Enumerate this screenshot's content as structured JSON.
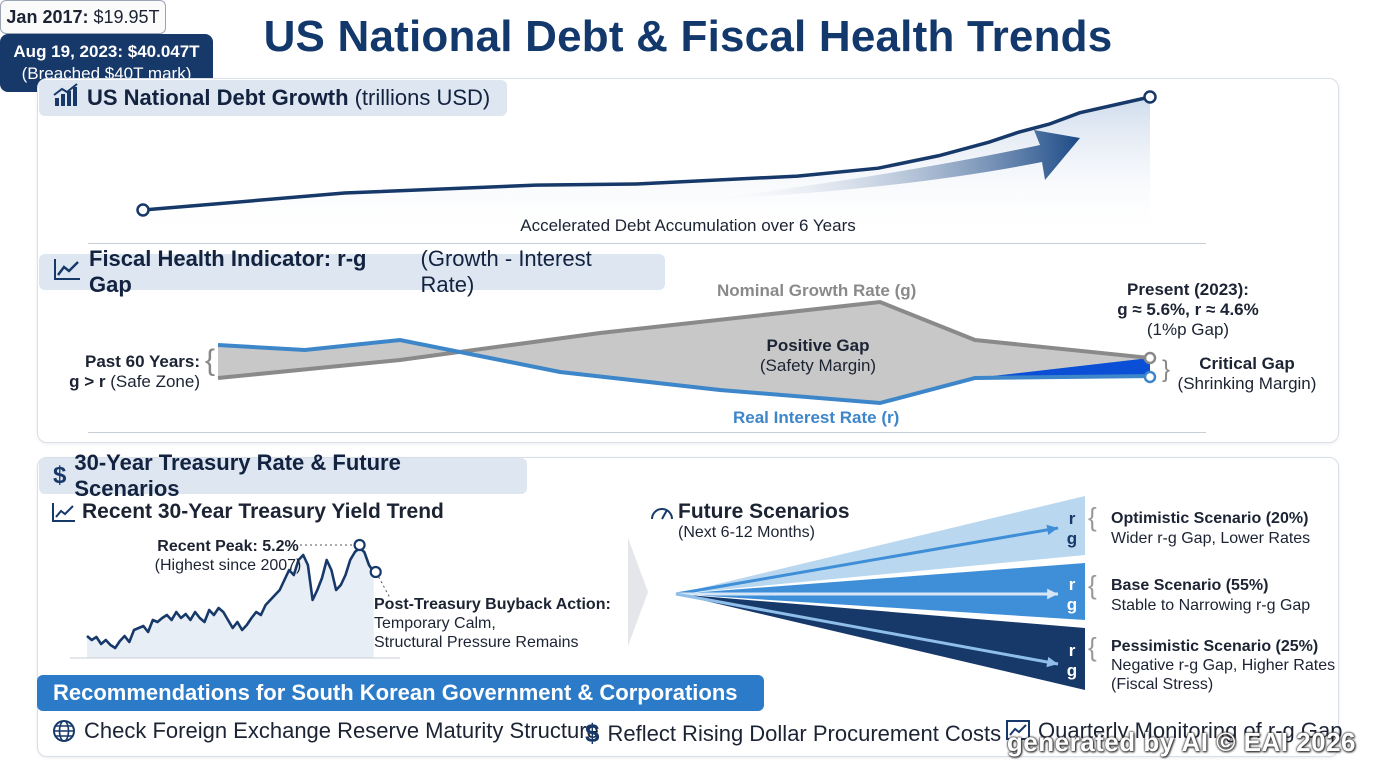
{
  "title": "US National Debt & Fiscal Health Trends",
  "sections": {
    "debt_growth": {
      "title_bold": "US National Debt Growth",
      "title_plain": "(trillions USD)"
    },
    "rg_gap": {
      "title_bold": "Fiscal Health Indicator: r-g Gap",
      "title_plain": "(Growth - Interest Rate)"
    },
    "treasury": {
      "title_bold": "30-Year Treasury Rate & Future Scenarios"
    }
  },
  "debt": {
    "start_label_bold": "Jan 2017:",
    "start_label_value": "$19.95T",
    "end_label_line1": "Aug 19, 2023: $40.047T",
    "end_label_line2": "(Breached $40T mark)",
    "caption": "Accelerated Debt Accumulation over 6 Years"
  },
  "rg": {
    "left_line1": "Past 60 Years:",
    "left_line2_bold": "g > r",
    "left_line2_plain": "(Safe Zone)",
    "g_label": "Nominal Growth Rate (g)",
    "r_label": "Real Interest Rate (r)",
    "positive_gap_bold": "Positive Gap",
    "positive_gap_plain": "(Safety Margin)",
    "present_line1": "Present (2023):",
    "present_line2": "g ≈ 5.6%, r ≈ 4.6%",
    "present_line3": "(1%p Gap)",
    "critical_bold": "Critical Gap",
    "critical_plain": "(Shrinking Margin)",
    "colors": {
      "g": "#8a8a8a",
      "r": "#3d86c9",
      "gap": "#c8c8c8",
      "critical": "#0a4fd6"
    }
  },
  "yield": {
    "title": "Recent 30-Year Treasury Yield Trend",
    "peak_bold": "Recent Peak: 5.2%",
    "peak_plain": "(Highest since 2007)",
    "post_bold": "Post-Treasury Buyback Action:",
    "post_line2": "Temporary Calm,",
    "post_line3": "Structural Pressure Remains"
  },
  "scenarios": {
    "title": "Future Scenarios",
    "subtitle": "(Next 6-12 Months)",
    "items": [
      {
        "name": "Optimistic Scenario (20%)",
        "desc": "Wider r-g Gap, Lower Rates",
        "desc2": "",
        "r": "r",
        "g": "g",
        "color": "#b9d7ef"
      },
      {
        "name": "Base Scenario (55%)",
        "desc": "Stable to Narrowing r-g Gap",
        "desc2": "",
        "r": "r",
        "g": "g",
        "color": "#3f8fd8"
      },
      {
        "name": "Pessimistic Scenario (25%)",
        "desc": "Negative r-g Gap, Higher Rates",
        "desc2": "(Fiscal Stress)",
        "r": "r",
        "g": "g",
        "color": "#17396a"
      }
    ]
  },
  "recommendations": {
    "title": "Recommendations for South Korean Government & Corporations",
    "items": [
      "Check Foreign Exchange Reserve Maturity Structure",
      "Reflect Rising Dollar Procurement Costs",
      "Quarterly Monitoring of r-g Gap"
    ]
  },
  "watermark": "generated by AI © EAI 2026",
  "chart_data": [
    {
      "type": "line",
      "title": "US National Debt Growth",
      "ylabel": "trillions USD",
      "x": [
        "Jan 2017",
        "Aug 19, 2023"
      ],
      "series": [
        {
          "values": [
            19.95,
            40.047
          ]
        }
      ],
      "annotations": [
        "Jan 2017: $19.95T",
        "Aug 19, 2023: $40.047T (Breached $40T mark)",
        "Accelerated Debt Accumulation over 6 Years"
      ]
    },
    {
      "type": "area",
      "title": "Fiscal Health Indicator: r-g Gap (Growth - Interest Rate)",
      "x": [
        "Past 60 Years",
        "Present (2023)"
      ],
      "series": [
        {
          "name": "Nominal Growth Rate (g)",
          "values": [
            null,
            5.6
          ]
        },
        {
          "name": "Real Interest Rate (r)",
          "values": [
            null,
            4.6
          ]
        }
      ],
      "annotations": [
        "g > r (Safe Zone)",
        "Positive Gap (Safety Margin)",
        "Critical Gap (Shrinking Margin)",
        "(1%p Gap)"
      ]
    },
    {
      "type": "line",
      "title": "Recent 30-Year Treasury Yield Trend",
      "series": [
        {
          "values": [
            null
          ],
          "peak": 5.2
        }
      ],
      "annotations": [
        "Recent Peak: 5.2% (Highest since 2007)",
        "Post-Treasury Buyback Action: Temporary Calm, Structural Pressure Remains"
      ]
    },
    {
      "type": "area",
      "title": "Future Scenarios",
      "categories": [
        "Optimistic Scenario (20%)",
        "Base Scenario (55%)",
        "Pessimistic Scenario (25%)"
      ],
      "values": [
        20,
        55,
        25
      ]
    }
  ]
}
